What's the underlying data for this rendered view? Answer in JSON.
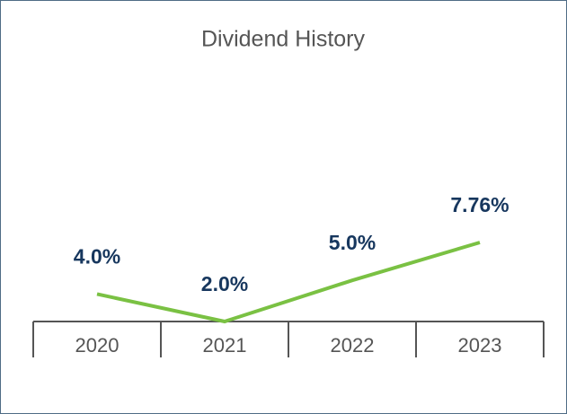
{
  "chart_data": {
    "type": "line",
    "title": "Dividend History",
    "categories": [
      "2020",
      "2021",
      "2022",
      "2023"
    ],
    "values": [
      4.0,
      2.0,
      5.0,
      7.76
    ],
    "value_labels": [
      "4.0%",
      "2.0%",
      "5.0%",
      "7.76%"
    ],
    "color": "#7ac143"
  }
}
